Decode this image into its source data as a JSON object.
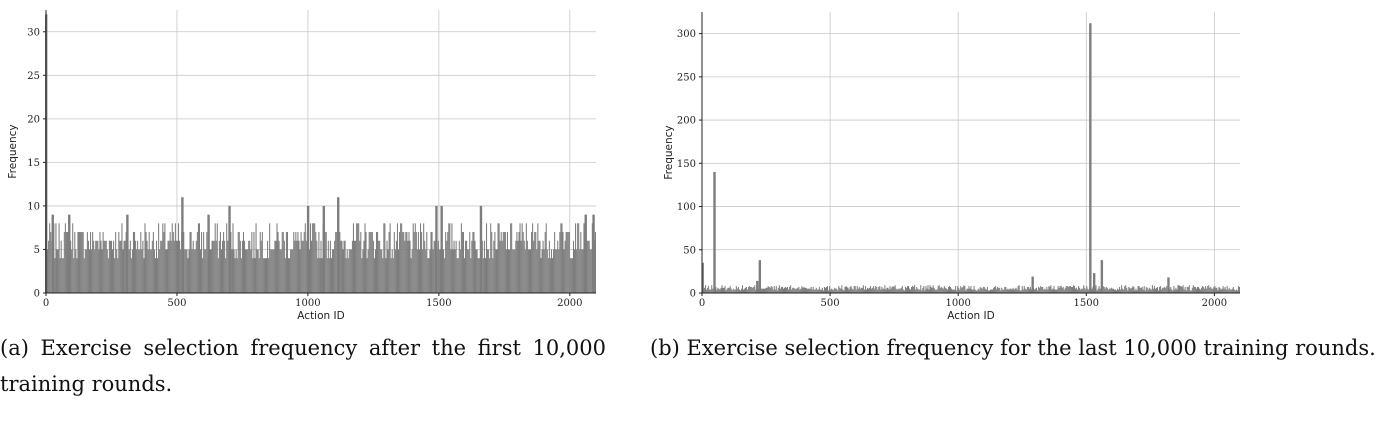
{
  "chart_data": [
    {
      "type": "bar",
      "xlabel": "Action ID",
      "ylabel": "Frequency",
      "xlim": [
        0,
        2100
      ],
      "ylim": [
        0,
        32.5
      ],
      "xticks": [
        0,
        500,
        1000,
        1500,
        2000
      ],
      "yticks": [
        0,
        5,
        10,
        15,
        20,
        25,
        30
      ],
      "grid": true,
      "baseline_range": [
        4,
        8
      ],
      "peaks": [
        {
          "x": 0,
          "y": 32
        },
        {
          "x": 25,
          "y": 9
        },
        {
          "x": 88,
          "y": 9
        },
        {
          "x": 310,
          "y": 9
        },
        {
          "x": 520,
          "y": 11
        },
        {
          "x": 620,
          "y": 9
        },
        {
          "x": 700,
          "y": 10
        },
        {
          "x": 1000,
          "y": 10
        },
        {
          "x": 1060,
          "y": 10
        },
        {
          "x": 1115,
          "y": 11
        },
        {
          "x": 1490,
          "y": 10
        },
        {
          "x": 1510,
          "y": 10
        },
        {
          "x": 1660,
          "y": 10
        },
        {
          "x": 2060,
          "y": 9
        },
        {
          "x": 2090,
          "y": 9
        }
      ],
      "caption": "(a) Exercise selection frequency after the first 10,000 training rounds."
    },
    {
      "type": "bar",
      "xlabel": "Action ID",
      "ylabel": "Frequency",
      "xlim": [
        0,
        2100
      ],
      "ylim": [
        0,
        325
      ],
      "xticks": [
        0,
        500,
        1000,
        1500,
        2000
      ],
      "yticks": [
        0,
        50,
        100,
        150,
        200,
        250,
        300
      ],
      "grid": true,
      "baseline_range": [
        3,
        9
      ],
      "peaks": [
        {
          "x": 2,
          "y": 35
        },
        {
          "x": 48,
          "y": 140
        },
        {
          "x": 225,
          "y": 38
        },
        {
          "x": 215,
          "y": 14
        },
        {
          "x": 1290,
          "y": 19
        },
        {
          "x": 1515,
          "y": 312
        },
        {
          "x": 1530,
          "y": 23
        },
        {
          "x": 1560,
          "y": 38
        },
        {
          "x": 1820,
          "y": 18
        }
      ],
      "caption": "(b) Exercise selection frequency for the last 10,000 training rounds."
    }
  ]
}
